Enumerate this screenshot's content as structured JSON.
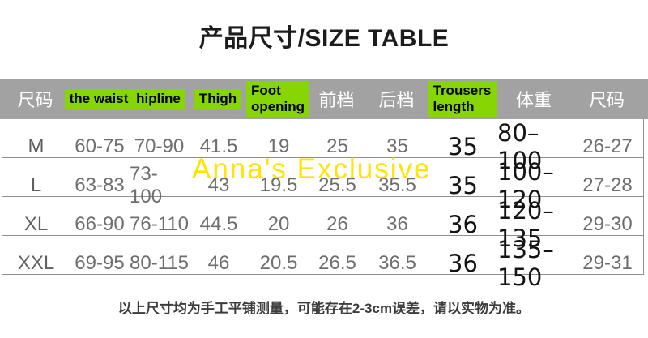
{
  "title": "产品尺寸/SIZE TABLE",
  "watermark": "Anna's Exclusive",
  "footer_note": "以上尺寸均为手工平铺测量，可能存在2-3cm误差，请以实物为准。",
  "colors": {
    "header_bg": "#a2a2a2",
    "highlight_green": "#85d603",
    "watermark_yellow": "#ffe404"
  },
  "table": {
    "headers": [
      {
        "label": "尺码",
        "highlight": false
      },
      {
        "label": "the waist",
        "highlight": true
      },
      {
        "label": "hipline",
        "highlight": true
      },
      {
        "label": "Thigh",
        "highlight": true
      },
      {
        "label": "Foot opening",
        "highlight": true
      },
      {
        "label": "前档",
        "highlight": false
      },
      {
        "label": "后档",
        "highlight": false
      },
      {
        "label": "Trousers length",
        "highlight": true
      },
      {
        "label": "体重",
        "highlight": false
      },
      {
        "label": "尺码",
        "highlight": false
      }
    ],
    "rows": [
      [
        "M",
        "60-75",
        "70-90",
        "41.5",
        "19",
        "25",
        "35",
        "35",
        "80–100",
        "26-27"
      ],
      [
        "L",
        "63-83",
        "73-100",
        "43",
        "19.5",
        "25.5",
        "35.5",
        "35",
        "100–120",
        "27-28"
      ],
      [
        "XL",
        "66-90",
        "76-110",
        "44.5",
        "20",
        "26",
        "36",
        "36",
        "120–135",
        "29-30"
      ],
      [
        "XXL",
        "69-95",
        "80-115",
        "46",
        "20.5",
        "26.5",
        "36.5",
        "36",
        "135–150",
        "29-31"
      ]
    ]
  }
}
